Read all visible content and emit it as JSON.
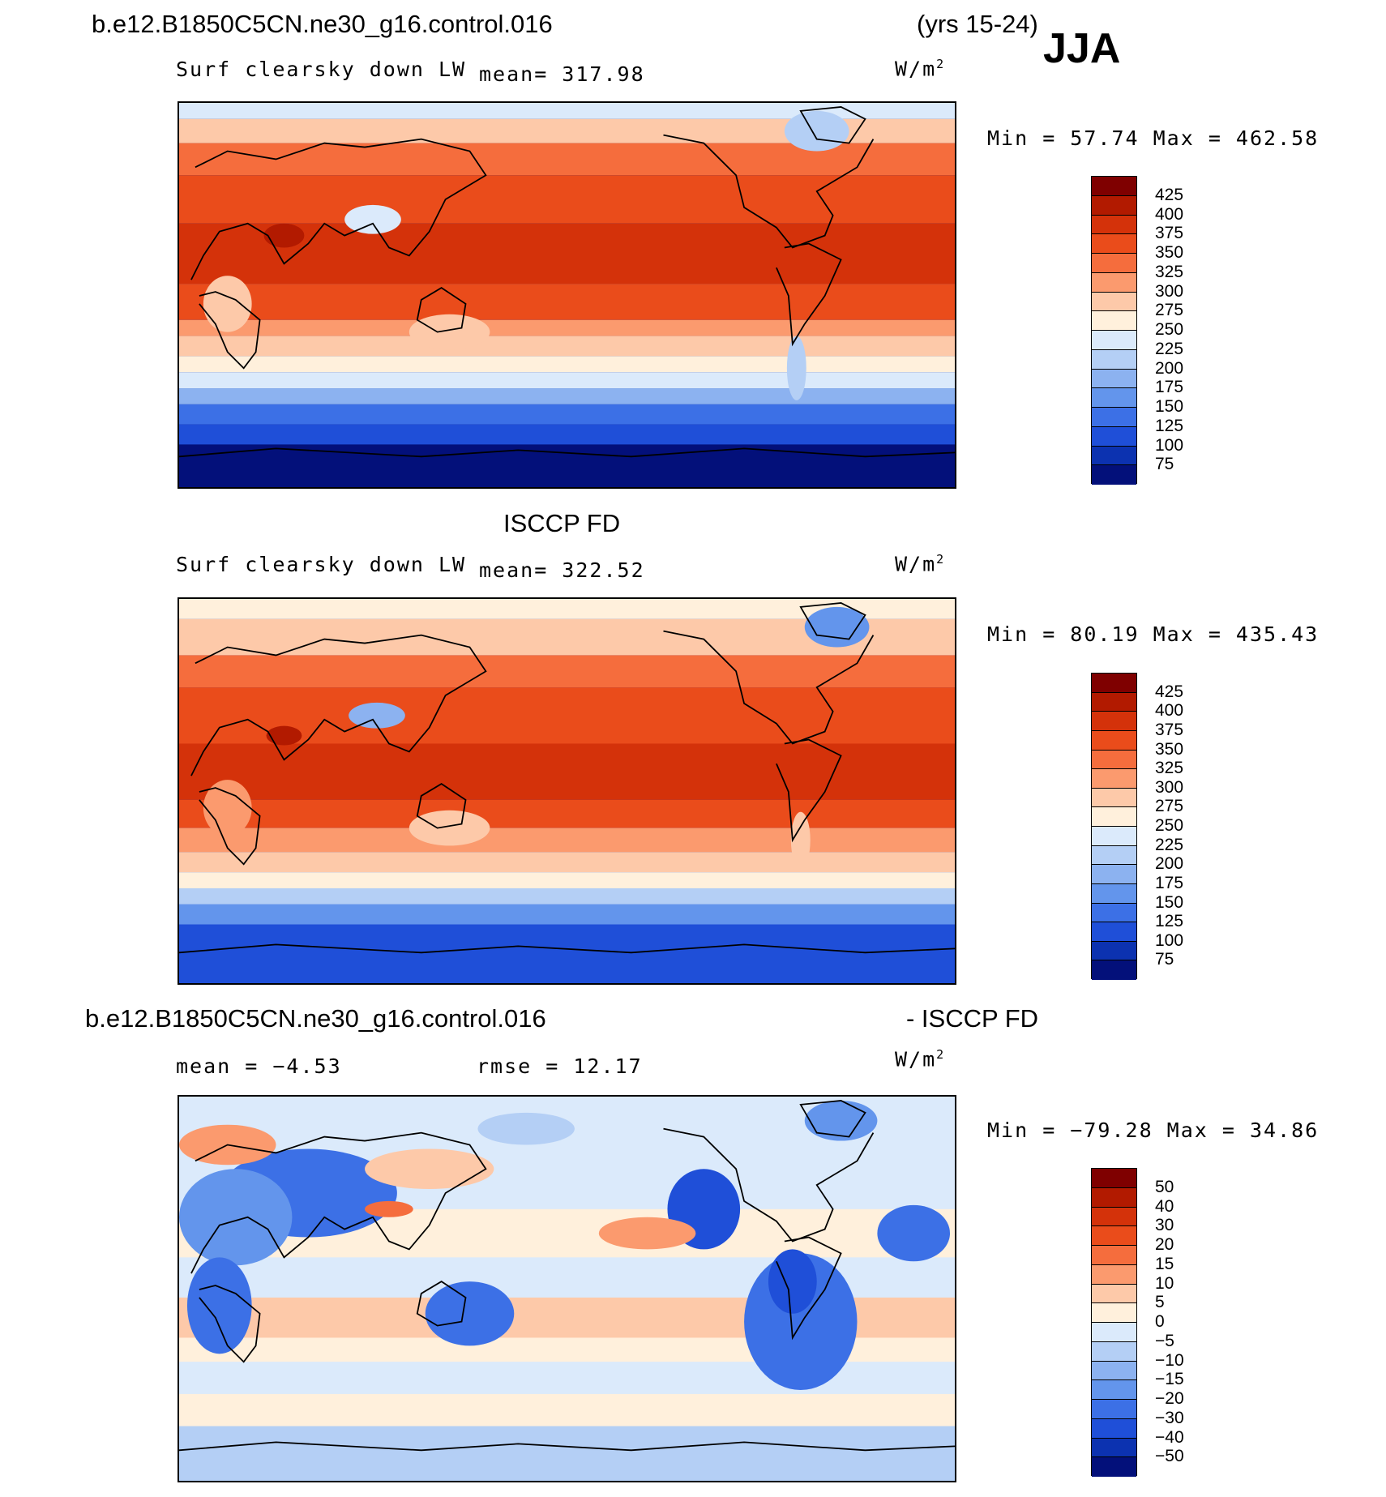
{
  "header": {
    "case_name": "b.e12.B1850C5CN.ne30_g16.control.016",
    "years": "(yrs 15-24)",
    "season": "JJA"
  },
  "panel1": {
    "variable": "Surf clearsky down LW",
    "mean": "mean= 317.98",
    "units": "W/m",
    "units_sup": "2",
    "minmax": "Min =  57.74 Max = 462.58"
  },
  "panel2": {
    "title": "ISCCP FD",
    "variable": "Surf clearsky down LW",
    "mean": "mean= 322.52",
    "units": "W/m",
    "units_sup": "2",
    "minmax": "Min =  80.19 Max = 435.43"
  },
  "panel3": {
    "title_left": "b.e12.B1850C5CN.ne30_g16.control.016",
    "title_right": "- ISCCP FD",
    "mean": "mean =  −4.53",
    "rmse": "rmse =  12.17",
    "units": "W/m",
    "units_sup": "2",
    "minmax": "Min = −79.28 Max =  34.86"
  },
  "colorbar_abs": {
    "colors": [
      "#7f0000",
      "#b21a00",
      "#d4320a",
      "#ea4c1b",
      "#f56d3d",
      "#fb9a6e",
      "#fdc9a9",
      "#fff0dc",
      "#dbeafb",
      "#b4cff5",
      "#8cb2f0",
      "#6395ec",
      "#3c70e6",
      "#1f4fd8",
      "#0c32b0",
      "#03107a"
    ],
    "labels": [
      "425",
      "400",
      "375",
      "350",
      "325",
      "300",
      "275",
      "250",
      "225",
      "200",
      "175",
      "150",
      "125",
      "100",
      "75"
    ]
  },
  "colorbar_diff": {
    "colors": [
      "#7f0000",
      "#b21a00",
      "#d4320a",
      "#ea4c1b",
      "#f56d3d",
      "#fb9a6e",
      "#fdc9a9",
      "#fff0dc",
      "#dbeafb",
      "#b4cff5",
      "#8cb2f0",
      "#6395ec",
      "#3c70e6",
      "#1f4fd8",
      "#0c32b0",
      "#03107a"
    ],
    "labels": [
      "50",
      "40",
      "30",
      "20",
      "15",
      "10",
      "5",
      "0",
      "−5",
      "−10",
      "−15",
      "−20",
      "−30",
      "−40",
      "−50"
    ]
  }
}
